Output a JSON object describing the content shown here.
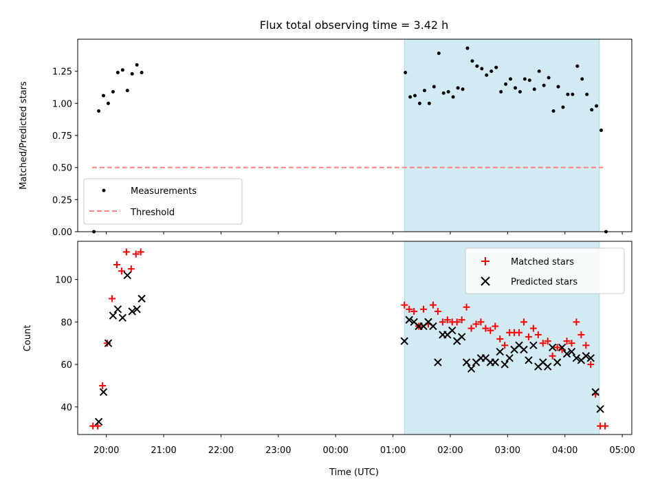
{
  "chart_data": [
    {
      "type": "scatter",
      "title": "Flux total observing time = 3.42 h",
      "xlabel": "",
      "ylabel": "Matched/Predicted stars",
      "xlim": [
        "19:30",
        "05:10"
      ],
      "ylim": [
        0,
        1.5
      ],
      "yticks": [
        "0.00",
        "0.25",
        "0.50",
        "0.75",
        "1.00",
        "1.25"
      ],
      "shaded_region": {
        "x": [
          "01:12",
          "04:36"
        ],
        "color": "#add8e6"
      },
      "legend_position": "lower-left",
      "series": [
        {
          "name": "Measurements",
          "marker": "dot",
          "color": "#000000",
          "points": [
            [
              "19:47",
              0.0
            ],
            [
              "19:52",
              0.94
            ],
            [
              "19:57",
              1.06
            ],
            [
              "20:02",
              1.0
            ],
            [
              "20:07",
              1.09
            ],
            [
              "20:12",
              1.24
            ],
            [
              "20:17",
              1.26
            ],
            [
              "20:22",
              1.1
            ],
            [
              "20:27",
              1.23
            ],
            [
              "20:32",
              1.3
            ],
            [
              "20:37",
              1.24
            ],
            [
              "01:13",
              1.24
            ],
            [
              "01:18",
              1.05
            ],
            [
              "01:23",
              1.06
            ],
            [
              "01:28",
              1.0
            ],
            [
              "01:33",
              1.1
            ],
            [
              "01:38",
              1.0
            ],
            [
              "01:43",
              1.13
            ],
            [
              "01:48",
              1.39
            ],
            [
              "01:53",
              1.08
            ],
            [
              "01:58",
              1.09
            ],
            [
              "02:03",
              1.05
            ],
            [
              "02:08",
              1.12
            ],
            [
              "02:13",
              1.11
            ],
            [
              "02:18",
              1.43
            ],
            [
              "02:23",
              1.33
            ],
            [
              "02:28",
              1.29
            ],
            [
              "02:33",
              1.27
            ],
            [
              "02:38",
              1.22
            ],
            [
              "02:43",
              1.25
            ],
            [
              "02:48",
              1.28
            ],
            [
              "02:53",
              1.09
            ],
            [
              "02:58",
              1.15
            ],
            [
              "03:03",
              1.19
            ],
            [
              "03:08",
              1.12
            ],
            [
              "03:13",
              1.09
            ],
            [
              "03:18",
              1.19
            ],
            [
              "03:23",
              1.18
            ],
            [
              "03:28",
              1.11
            ],
            [
              "03:33",
              1.25
            ],
            [
              "03:38",
              1.14
            ],
            [
              "03:43",
              1.2
            ],
            [
              "03:48",
              0.94
            ],
            [
              "03:53",
              1.13
            ],
            [
              "03:58",
              0.97
            ],
            [
              "04:03",
              1.07
            ],
            [
              "04:08",
              1.07
            ],
            [
              "04:13",
              1.29
            ],
            [
              "04:18",
              1.19
            ],
            [
              "04:23",
              1.07
            ],
            [
              "04:28",
              0.95
            ],
            [
              "04:33",
              0.98
            ],
            [
              "04:38",
              0.79
            ],
            [
              "04:43",
              0.0
            ]
          ]
        },
        {
          "name": "Threshold",
          "marker": "dashed-line",
          "color": "#ff7f7f",
          "points": [
            [
              "19:45",
              0.5
            ],
            [
              "04:40",
              0.5
            ]
          ]
        }
      ]
    },
    {
      "type": "scatter",
      "title": "",
      "xlabel": "Time (UTC)",
      "ylabel": "Count",
      "xlim": [
        "19:30",
        "05:10"
      ],
      "ylim": [
        27,
        118
      ],
      "yticks": [
        "40",
        "60",
        "80",
        "100"
      ],
      "xticks": [
        "20:00",
        "21:00",
        "22:00",
        "23:00",
        "00:00",
        "01:00",
        "02:00",
        "03:00",
        "04:00",
        "05:00"
      ],
      "shaded_region": {
        "x": [
          "01:12",
          "04:36"
        ],
        "color": "#add8e6"
      },
      "legend_position": "upper-right",
      "series": [
        {
          "name": "Matched stars",
          "marker": "plus",
          "color": "#ff0000",
          "points": [
            [
              "19:46",
              31
            ],
            [
              "19:51",
              31
            ],
            [
              "19:56",
              50
            ],
            [
              "20:01",
              70
            ],
            [
              "20:06",
              91
            ],
            [
              "20:11",
              107
            ],
            [
              "20:16",
              104
            ],
            [
              "20:21",
              113
            ],
            [
              "20:26",
              105
            ],
            [
              "20:31",
              112
            ],
            [
              "20:36",
              113
            ],
            [
              "01:12",
              88
            ],
            [
              "01:17",
              86
            ],
            [
              "01:22",
              85
            ],
            [
              "01:27",
              78
            ],
            [
              "01:32",
              86
            ],
            [
              "01:37",
              79
            ],
            [
              "01:42",
              88
            ],
            [
              "01:47",
              85
            ],
            [
              "01:52",
              80
            ],
            [
              "01:57",
              81
            ],
            [
              "02:02",
              80
            ],
            [
              "02:07",
              80
            ],
            [
              "02:12",
              81
            ],
            [
              "02:17",
              87
            ],
            [
              "02:22",
              77
            ],
            [
              "02:27",
              79
            ],
            [
              "02:32",
              80
            ],
            [
              "02:37",
              77
            ],
            [
              "02:42",
              76
            ],
            [
              "02:47",
              78
            ],
            [
              "02:52",
              72
            ],
            [
              "02:57",
              69
            ],
            [
              "03:02",
              75
            ],
            [
              "03:07",
              75
            ],
            [
              "03:12",
              75
            ],
            [
              "03:17",
              80
            ],
            [
              "03:22",
              73
            ],
            [
              "03:27",
              77
            ],
            [
              "03:32",
              74
            ],
            [
              "03:37",
              70
            ],
            [
              "03:42",
              71
            ],
            [
              "03:47",
              64
            ],
            [
              "03:52",
              68
            ],
            [
              "03:57",
              67
            ],
            [
              "04:02",
              71
            ],
            [
              "04:07",
              70
            ],
            [
              "04:12",
              80
            ],
            [
              "04:17",
              74
            ],
            [
              "04:22",
              69
            ],
            [
              "04:27",
              60
            ],
            [
              "04:32",
              46
            ],
            [
              "04:37",
              31
            ],
            [
              "04:42",
              31
            ]
          ]
        },
        {
          "name": "Predicted stars",
          "marker": "x",
          "color": "#000000",
          "points": [
            [
              "19:52",
              33
            ],
            [
              "19:57",
              47
            ],
            [
              "20:02",
              70
            ],
            [
              "20:07",
              83
            ],
            [
              "20:12",
              86
            ],
            [
              "20:17",
              82
            ],
            [
              "20:22",
              102
            ],
            [
              "20:27",
              85
            ],
            [
              "20:32",
              86
            ],
            [
              "20:37",
              91
            ],
            [
              "01:12",
              71
            ],
            [
              "01:17",
              81
            ],
            [
              "01:22",
              80
            ],
            [
              "01:27",
              78
            ],
            [
              "01:32",
              78
            ],
            [
              "01:37",
              80
            ],
            [
              "01:42",
              78
            ],
            [
              "01:47",
              61
            ],
            [
              "01:52",
              74
            ],
            [
              "01:57",
              74
            ],
            [
              "02:02",
              76
            ],
            [
              "02:07",
              71
            ],
            [
              "02:12",
              73
            ],
            [
              "02:17",
              61
            ],
            [
              "02:22",
              58
            ],
            [
              "02:27",
              61
            ],
            [
              "02:32",
              63
            ],
            [
              "02:37",
              63
            ],
            [
              "02:42",
              61
            ],
            [
              "02:47",
              61
            ],
            [
              "02:52",
              66
            ],
            [
              "02:57",
              60
            ],
            [
              "03:02",
              63
            ],
            [
              "03:07",
              67
            ],
            [
              "03:12",
              69
            ],
            [
              "03:17",
              67
            ],
            [
              "03:22",
              62
            ],
            [
              "03:27",
              69
            ],
            [
              "03:32",
              59
            ],
            [
              "03:37",
              61
            ],
            [
              "03:42",
              59
            ],
            [
              "03:47",
              68
            ],
            [
              "03:52",
              61
            ],
            [
              "03:57",
              68
            ],
            [
              "04:02",
              65
            ],
            [
              "04:07",
              66
            ],
            [
              "04:12",
              63
            ],
            [
              "04:17",
              62
            ],
            [
              "04:22",
              64
            ],
            [
              "04:27",
              63
            ],
            [
              "04:32",
              47
            ],
            [
              "04:37",
              39
            ]
          ]
        }
      ]
    }
  ]
}
